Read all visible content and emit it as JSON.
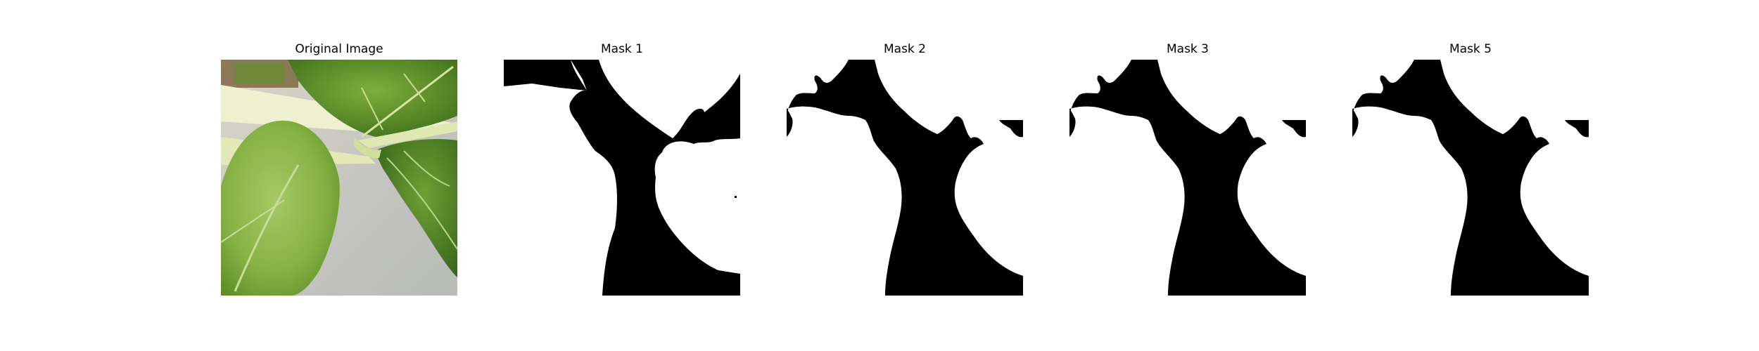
{
  "figure": {
    "panels": [
      {
        "title": "Original Image"
      },
      {
        "title": "Mask 1"
      },
      {
        "title": "Mask 2"
      },
      {
        "title": "Mask 3"
      },
      {
        "title": "Mask 5"
      }
    ]
  },
  "colors": {
    "background": "#ffffff",
    "mask_foreground": "#000000",
    "mask_background": "#ffffff",
    "leaf_green": "#7ea83e",
    "leaf_dark": "#4f7f22",
    "stem": "#e8ecc8",
    "backdrop_gray": "#c8c8c4"
  }
}
